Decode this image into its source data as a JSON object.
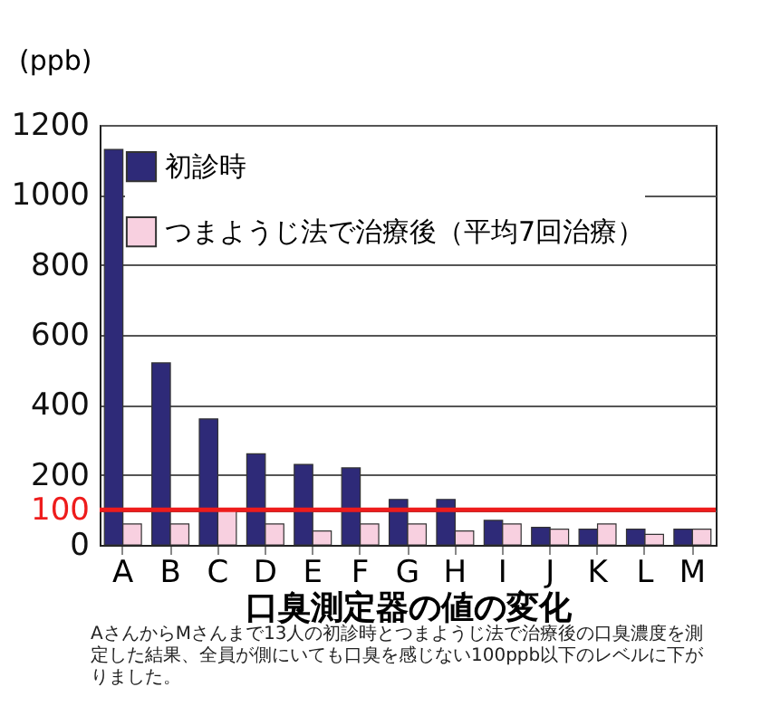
{
  "chart_data": {
    "type": "bar",
    "xlabel": "口臭測定器の値の変化",
    "ylabel": "(ppb)",
    "categories": [
      "A",
      "B",
      "C",
      "D",
      "E",
      "F",
      "G",
      "H",
      "I",
      "J",
      "K",
      "L",
      "M"
    ],
    "series": [
      {
        "name": "初診時",
        "color": "#2e2a78",
        "values": [
          1130,
          520,
          360,
          260,
          230,
          220,
          130,
          130,
          70,
          50,
          45,
          45,
          45
        ]
      },
      {
        "name": "つまようじ法で治療後（平均7回治療）",
        "color": "#f8d0e0",
        "values": [
          60,
          60,
          100,
          60,
          40,
          60,
          60,
          40,
          60,
          45,
          60,
          30,
          45
        ]
      }
    ],
    "ylim": [
      0,
      1200
    ],
    "yticks": [
      0,
      100,
      200,
      400,
      600,
      800,
      1000,
      1200
    ],
    "grid": true,
    "legend": "top left",
    "ref_lines": [
      {
        "axis": "y",
        "value": 100,
        "color": "#ee1c1c"
      }
    ],
    "annotations": [
      "AさんからMさんまで13人の初診時とつまようじ法で治療後の口臭濃度を測定した結果、全員が側にいても口臭を感じない100ppb以下のレベルに下がりました。"
    ]
  }
}
